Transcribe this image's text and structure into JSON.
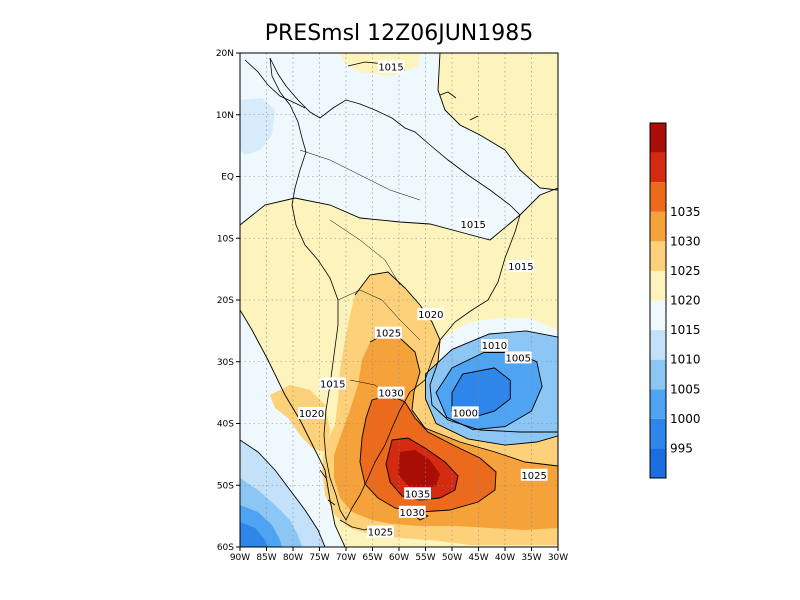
{
  "title": "PRESmsl  12Z06JUN1985",
  "map": {
    "lon_range": [
      -90,
      -30
    ],
    "lat_range": [
      -60,
      20
    ],
    "x_ticks": [
      {
        "v": -90,
        "label": "90W"
      },
      {
        "v": -85,
        "label": "85W"
      },
      {
        "v": -80,
        "label": "80W"
      },
      {
        "v": -75,
        "label": "75W"
      },
      {
        "v": -70,
        "label": "70W"
      },
      {
        "v": -65,
        "label": "65W"
      },
      {
        "v": -60,
        "label": "60W"
      },
      {
        "v": -55,
        "label": "55W"
      },
      {
        "v": -50,
        "label": "50W"
      },
      {
        "v": -45,
        "label": "45W"
      },
      {
        "v": -40,
        "label": "40W"
      },
      {
        "v": -35,
        "label": "35W"
      },
      {
        "v": -30,
        "label": "30W"
      }
    ],
    "y_ticks": [
      {
        "v": 20,
        "label": "20N"
      },
      {
        "v": 10,
        "label": "10N"
      },
      {
        "v": 0,
        "label": "EQ"
      },
      {
        "v": -10,
        "label": "10S"
      },
      {
        "v": -20,
        "label": "20S"
      },
      {
        "v": -30,
        "label": "30S"
      },
      {
        "v": -40,
        "label": "40S"
      },
      {
        "v": -50,
        "label": "50S"
      },
      {
        "v": -60,
        "label": "60S"
      }
    ],
    "grid": true
  },
  "colorbar": {
    "levels": [
      {
        "label": "",
        "color": "#1a6fe0"
      },
      {
        "label": "995",
        "color": "#2f86ea"
      },
      {
        "label": "1000",
        "color": "#4ea3f2"
      },
      {
        "label": "1005",
        "color": "#8cc6f5"
      },
      {
        "label": "1010",
        "color": "#c3e2fa"
      },
      {
        "label": "1015",
        "color": "#eef8fd"
      },
      {
        "label": "1020",
        "color": "#fdf3bd"
      },
      {
        "label": "1025",
        "color": "#fcd17a"
      },
      {
        "label": "1030",
        "color": "#f5a23a"
      },
      {
        "label": "1035",
        "color": "#ec6a1c"
      },
      {
        "label": "",
        "color": "#d42a10"
      },
      {
        "label": "",
        "color": "#a80e05"
      }
    ],
    "tick_labels": [
      "995",
      "1000",
      "1005",
      "1010",
      "1015",
      "1020",
      "1025",
      "1030",
      "1035"
    ]
  },
  "contour_labels": [
    {
      "text": "1015",
      "lon": -61.5,
      "lat": 17.8
    },
    {
      "text": "1015",
      "lon": -46,
      "lat": -7.7
    },
    {
      "text": "1015",
      "lon": -37,
      "lat": -14.5
    },
    {
      "text": "1020",
      "lon": -54,
      "lat": -22.3
    },
    {
      "text": "1025",
      "lon": -62,
      "lat": -25.3
    },
    {
      "text": "1010",
      "lon": -42,
      "lat": -27.3
    },
    {
      "text": "1005",
      "lon": -37.5,
      "lat": -29.3
    },
    {
      "text": "1015",
      "lon": -72.5,
      "lat": -33.5
    },
    {
      "text": "1030",
      "lon": -61.5,
      "lat": -35
    },
    {
      "text": "1020",
      "lon": -76.5,
      "lat": -38.3
    },
    {
      "text": "1000",
      "lon": -47.5,
      "lat": -38.2
    },
    {
      "text": "1025",
      "lon": -34.5,
      "lat": -48.3
    },
    {
      "text": "1035",
      "lon": -56.5,
      "lat": -51.3
    },
    {
      "text": "1030",
      "lon": -57.5,
      "lat": -54.3
    },
    {
      "text": "1025",
      "lon": -63.5,
      "lat": -57.5
    }
  ],
  "fields": [
    {
      "name": "low-1000",
      "color": "#2f86ea",
      "poly": [
        [
          -48,
          -32
        ],
        [
          -42,
          -31
        ],
        [
          -39,
          -33
        ],
        [
          -39,
          -36
        ],
        [
          -42,
          -38
        ],
        [
          -46,
          -39
        ],
        [
          -50,
          -38
        ],
        [
          -50,
          -35
        ]
      ]
    },
    {
      "name": "low-1005",
      "color": "#4ea3f2",
      "poly": [
        [
          -50,
          -31
        ],
        [
          -44,
          -28.5
        ],
        [
          -38,
          -28.5
        ],
        [
          -34,
          -30
        ],
        [
          -33,
          -34
        ],
        [
          -35,
          -38
        ],
        [
          -40,
          -40.5
        ],
        [
          -46,
          -41
        ],
        [
          -51,
          -39
        ],
        [
          -53,
          -35
        ]
      ]
    },
    {
      "name": "low-1010",
      "color": "#8cc6f5",
      "poly": [
        [
          -55,
          -32
        ],
        [
          -50,
          -28
        ],
        [
          -43,
          -25.5
        ],
        [
          -36,
          -25
        ],
        [
          -30,
          -26
        ],
        [
          -30,
          -42
        ],
        [
          -34,
          -43
        ],
        [
          -40,
          -43.5
        ],
        [
          -47,
          -42.5
        ],
        [
          -53,
          -40
        ],
        [
          -55,
          -36
        ]
      ]
    }
  ]
}
